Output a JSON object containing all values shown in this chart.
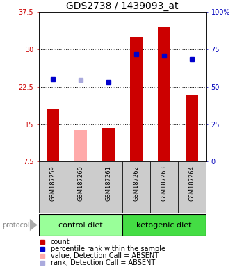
{
  "title": "GDS2738 / 1439093_at",
  "samples": [
    "GSM187259",
    "GSM187260",
    "GSM187261",
    "GSM187262",
    "GSM187263",
    "GSM187264"
  ],
  "bar_values": [
    18.0,
    13.8,
    14.3,
    32.5,
    34.5,
    21.0
  ],
  "bar_colors": [
    "#cc0000",
    "#ffaaaa",
    "#cc0000",
    "#cc0000",
    "#cc0000",
    "#cc0000"
  ],
  "rank_values": [
    24.0,
    23.8,
    23.5,
    29.0,
    28.8,
    28.0
  ],
  "rank_colors": [
    "#0000cc",
    "#aaaadd",
    "#0000cc",
    "#0000cc",
    "#0000cc",
    "#0000cc"
  ],
  "ylim_left": [
    7.5,
    37.5
  ],
  "ylim_right": [
    0,
    100
  ],
  "yticks_left": [
    7.5,
    15.0,
    22.5,
    30.0,
    37.5
  ],
  "yticks_right": [
    0,
    25,
    50,
    75,
    100
  ],
  "ytick_labels_left": [
    "7.5",
    "15",
    "22.5",
    "30",
    "37.5"
  ],
  "ytick_labels_right": [
    "0",
    "25",
    "50",
    "75",
    "100%"
  ],
  "hlines": [
    15.0,
    22.5,
    30.0
  ],
  "groups": [
    {
      "label": "control diet",
      "samples": [
        0,
        1,
        2
      ],
      "color": "#99ff99"
    },
    {
      "label": "ketogenic diet",
      "samples": [
        3,
        4,
        5
      ],
      "color": "#44dd44"
    }
  ],
  "legend_items": [
    {
      "color": "#cc0000",
      "label": "count"
    },
    {
      "color": "#0000cc",
      "label": "percentile rank within the sample"
    },
    {
      "color": "#ffaaaa",
      "label": "value, Detection Call = ABSENT"
    },
    {
      "color": "#aaaadd",
      "label": "rank, Detection Call = ABSENT"
    }
  ],
  "protocol_label": "protocol",
  "bar_bottom": 7.5,
  "bar_width": 0.45,
  "rank_marker_size": 5,
  "left_tick_color": "#cc0000",
  "right_tick_color": "#0000bb",
  "title_fontsize": 10,
  "tick_fontsize": 7,
  "sample_label_fontsize": 6,
  "group_label_fontsize": 8,
  "legend_fontsize": 7,
  "plot_bg_color": "#ffffff",
  "sample_box_color": "#cccccc"
}
